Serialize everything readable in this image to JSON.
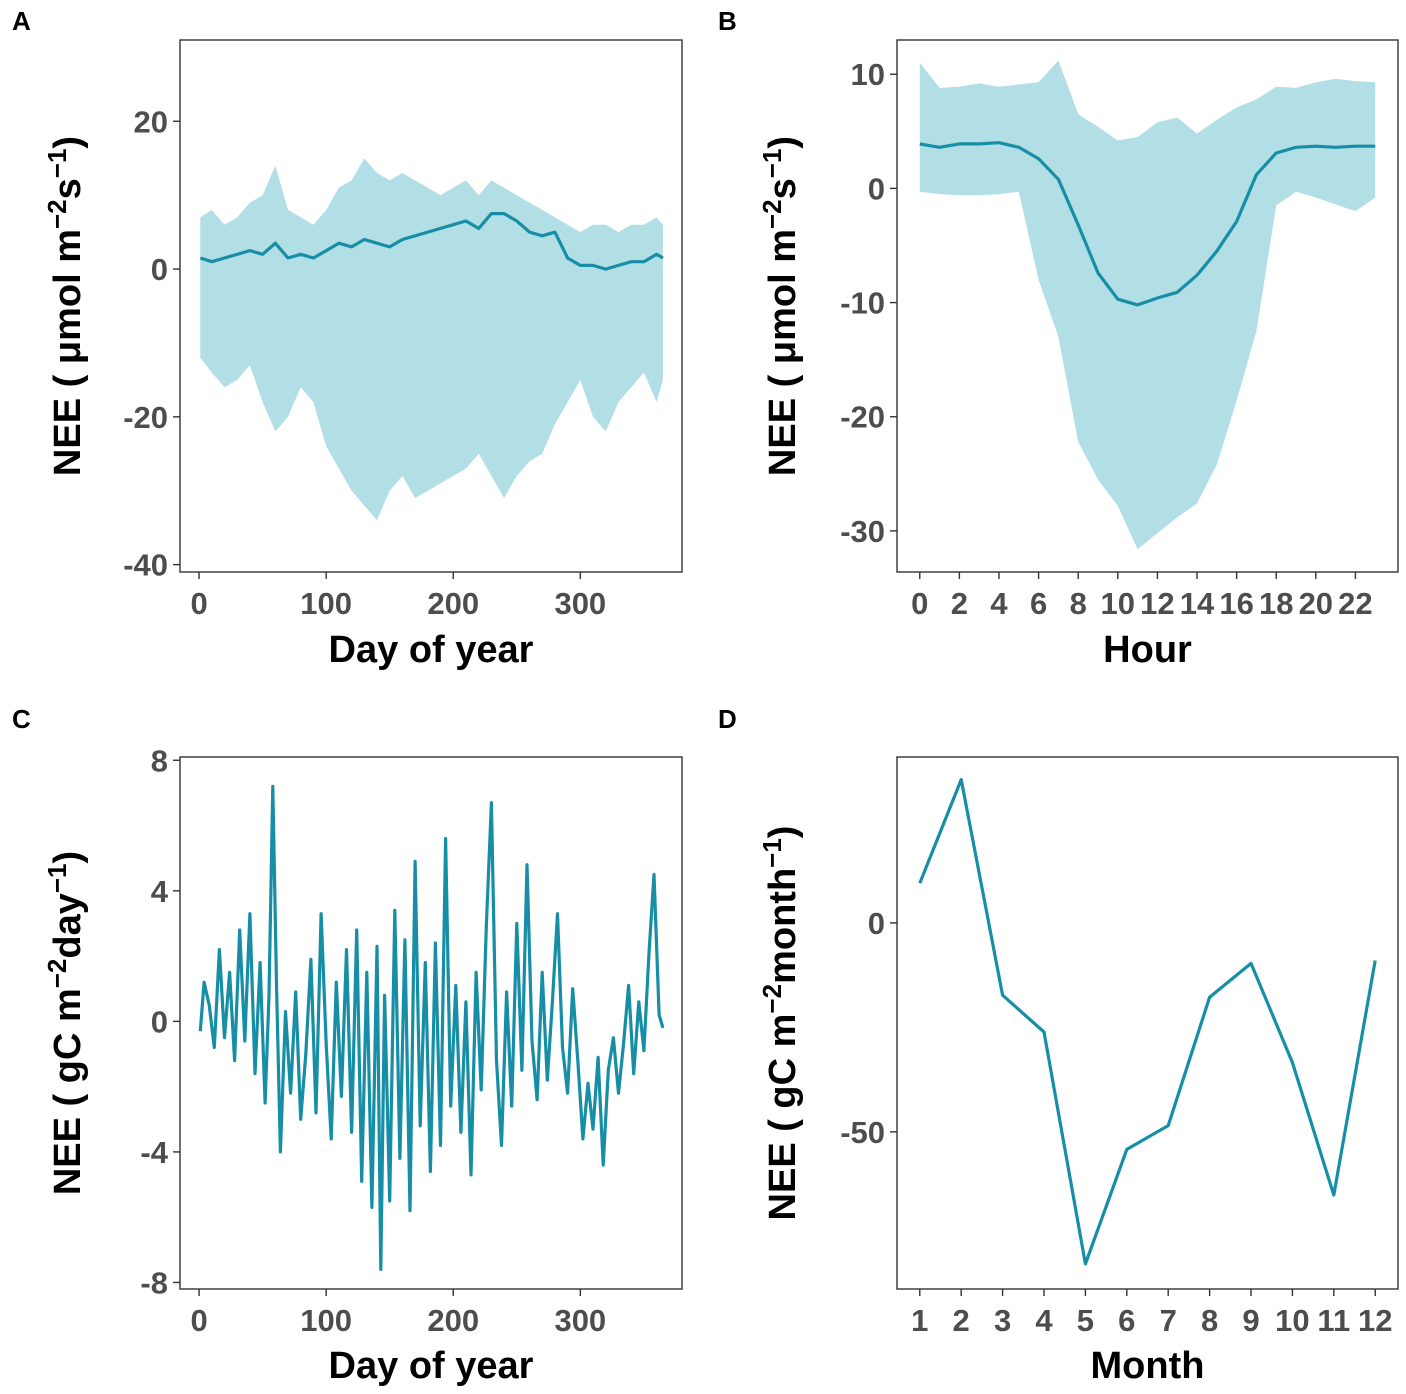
{
  "colors": {
    "line": "#168ea6",
    "band": "#b2dee6",
    "axis": "#333333",
    "tick_text": "#4d4d4d"
  },
  "chart_data": [
    {
      "id": "A",
      "panel_label": "A",
      "type": "line",
      "description": "Daily mean NEE with min-max band",
      "xlabel": "Day of year",
      "ylabel": {
        "main": "NEE ( μmol m",
        "sup1": "−2",
        "mid": "s",
        "sup2": "−1",
        "end": ")"
      },
      "xlim": [
        -15,
        380
      ],
      "ylim": [
        -41,
        31
      ],
      "xticks": [
        0,
        100,
        200,
        300
      ],
      "xtick_labels": [
        "0",
        "100",
        "200",
        "300"
      ],
      "yticks": [
        -40,
        -20,
        0,
        20
      ],
      "ytick_labels": [
        "-40",
        "-20",
        "0",
        "20"
      ],
      "x": [
        1,
        10,
        20,
        30,
        40,
        50,
        60,
        70,
        80,
        90,
        100,
        110,
        120,
        130,
        140,
        150,
        160,
        170,
        180,
        190,
        200,
        210,
        220,
        230,
        240,
        250,
        260,
        270,
        280,
        290,
        300,
        310,
        320,
        330,
        340,
        350,
        360,
        365
      ],
      "mean": [
        1.5,
        1.0,
        1.5,
        2.0,
        2.5,
        2.0,
        3.5,
        1.5,
        2.0,
        1.5,
        2.5,
        3.5,
        3.0,
        4.0,
        3.5,
        3.0,
        4.0,
        4.5,
        5.0,
        5.5,
        6.0,
        6.5,
        5.5,
        7.5,
        7.5,
        6.5,
        5.0,
        4.5,
        5.0,
        1.5,
        0.5,
        0.5,
        0.0,
        0.5,
        1.0,
        1.0,
        2.0,
        1.5
      ],
      "band_upper": [
        7,
        8,
        6,
        7,
        9,
        10,
        14,
        8,
        7,
        6,
        8,
        11,
        12,
        15,
        13,
        12,
        13,
        12,
        11,
        10,
        11,
        12,
        10,
        12,
        11,
        10,
        9,
        8,
        7,
        6,
        5,
        6,
        6,
        5,
        6,
        6,
        7,
        6
      ],
      "band_lower": [
        -12,
        -14,
        -16,
        -15,
        -13,
        -18,
        -22,
        -20,
        -16,
        -18,
        -24,
        -27,
        -30,
        -32,
        -34,
        -30,
        -28,
        -31,
        -30,
        -29,
        -28,
        -27,
        -25,
        -28,
        -31,
        -28,
        -26,
        -25,
        -21,
        -18,
        -15,
        -20,
        -22,
        -18,
        -16,
        -14,
        -18,
        -15
      ]
    },
    {
      "id": "B",
      "panel_label": "B",
      "type": "line",
      "description": "Diurnal mean NEE with min-max band",
      "xlabel": "Hour",
      "ylabel": {
        "main": "NEE ( μmol m",
        "sup1": "−2",
        "mid": "s",
        "sup2": "−1",
        "end": ")"
      },
      "xlim": [
        -1.15,
        24.15
      ],
      "ylim": [
        -33.6,
        13.0
      ],
      "xticks": [
        0,
        2,
        4,
        6,
        8,
        10,
        12,
        14,
        16,
        18,
        20,
        22
      ],
      "xtick_labels": [
        "0",
        "2",
        "4",
        "6",
        "8",
        "10",
        "12",
        "14",
        "16",
        "18",
        "20",
        "22"
      ],
      "yticks": [
        -30,
        -20,
        -10,
        0,
        10
      ],
      "ytick_labels": [
        "-30",
        "-20",
        "-10",
        "0",
        "10"
      ],
      "x": [
        0,
        1,
        2,
        3,
        4,
        5,
        6,
        7,
        8,
        9,
        10,
        11,
        12,
        13,
        14,
        15,
        16,
        17,
        18,
        19,
        20,
        21,
        22,
        23
      ],
      "mean": [
        3.9,
        3.6,
        3.9,
        3.9,
        4.0,
        3.6,
        2.6,
        0.8,
        -3.2,
        -7.4,
        -9.7,
        -10.2,
        -9.6,
        -9.1,
        -7.6,
        -5.5,
        -2.9,
        1.2,
        3.1,
        3.6,
        3.7,
        3.6,
        3.7,
        3.7
      ],
      "band_upper": [
        11.0,
        8.8,
        8.9,
        9.2,
        8.9,
        9.1,
        9.3,
        11.2,
        6.5,
        5.4,
        4.2,
        4.5,
        5.8,
        6.2,
        4.8,
        6.0,
        7.1,
        7.8,
        8.9,
        8.8,
        9.3,
        9.6,
        9.4,
        9.3
      ],
      "band_lower": [
        -0.3,
        -0.5,
        -0.6,
        -0.6,
        -0.5,
        -0.3,
        -8.0,
        -13.0,
        -22.2,
        -25.5,
        -27.8,
        -31.6,
        -30.2,
        -28.8,
        -27.6,
        -24.2,
        -18.6,
        -12.5,
        -1.5,
        -0.3,
        -0.8,
        -1.4,
        -2.0,
        -0.8
      ]
    },
    {
      "id": "C",
      "panel_label": "C",
      "type": "line",
      "description": "Daily cumulative NEE",
      "xlabel": "Day of year",
      "ylabel": {
        "main": "NEE ( gC m",
        "sup1": "−2",
        "mid": "day",
        "sup2": "−1",
        "end": ")"
      },
      "xlim": [
        -15,
        380
      ],
      "ylim": [
        -8.2,
        8.1
      ],
      "xticks": [
        0,
        100,
        200,
        300
      ],
      "xtick_labels": [
        "0",
        "100",
        "200",
        "300"
      ],
      "yticks": [
        -8,
        -4,
        0,
        4,
        8
      ],
      "ytick_labels": [
        "-8",
        "-4",
        "0",
        "4",
        "8"
      ],
      "x": [
        1,
        4,
        8,
        12,
        16,
        20,
        24,
        28,
        32,
        36,
        40,
        44,
        48,
        52,
        55,
        58,
        61,
        64,
        68,
        72,
        76,
        80,
        84,
        88,
        92,
        96,
        100,
        104,
        108,
        112,
        116,
        120,
        124,
        128,
        132,
        136,
        140,
        143,
        146,
        150,
        154,
        158,
        162,
        166,
        170,
        174,
        178,
        182,
        186,
        190,
        194,
        198,
        202,
        206,
        210,
        214,
        218,
        222,
        226,
        230,
        234,
        238,
        242,
        246,
        250,
        254,
        258,
        262,
        266,
        270,
        274,
        278,
        282,
        286,
        290,
        294,
        298,
        302,
        306,
        310,
        314,
        318,
        322,
        326,
        330,
        334,
        338,
        342,
        346,
        350,
        354,
        358,
        362,
        365
      ],
      "values": [
        -0.3,
        1.2,
        0.5,
        -0.8,
        2.2,
        -0.5,
        1.5,
        -1.2,
        2.8,
        -0.6,
        3.3,
        -1.6,
        1.8,
        -2.5,
        0.8,
        7.2,
        1.0,
        -4.0,
        0.3,
        -2.2,
        0.9,
        -3.0,
        -1.0,
        1.9,
        -2.8,
        3.3,
        -0.7,
        -3.6,
        1.2,
        -2.3,
        2.2,
        -3.4,
        2.8,
        -4.9,
        1.5,
        -5.7,
        2.3,
        -7.6,
        0.8,
        -5.5,
        3.4,
        -4.2,
        2.5,
        -5.8,
        4.9,
        -3.2,
        1.8,
        -4.6,
        2.4,
        -3.8,
        5.6,
        -2.6,
        1.1,
        -3.4,
        0.6,
        -4.7,
        1.5,
        -2.1,
        2.9,
        6.7,
        -1.2,
        -3.8,
        0.9,
        -2.6,
        3.0,
        -1.5,
        4.8,
        -0.6,
        -2.4,
        1.5,
        -1.8,
        0.6,
        3.3,
        -0.8,
        -2.2,
        1.0,
        -1.2,
        -3.6,
        -1.9,
        -3.3,
        -1.1,
        -4.4,
        -1.5,
        -0.5,
        -2.2,
        -0.7,
        1.1,
        -1.6,
        0.6,
        -0.9,
        2.1,
        4.5,
        0.2,
        -0.2
      ]
    },
    {
      "id": "D",
      "panel_label": "D",
      "type": "line",
      "description": "Monthly cumulative NEE",
      "xlabel": "Month",
      "ylabel": {
        "main": "NEE ( gC m",
        "sup1": "−2",
        "mid": "month",
        "sup2": "−1",
        "end": ")"
      },
      "xlim": [
        0.45,
        12.55
      ],
      "ylim": [
        -87.6,
        39.7
      ],
      "xticks": [
        1,
        2,
        3,
        4,
        5,
        6,
        7,
        8,
        9,
        10,
        11,
        12
      ],
      "xtick_labels": [
        "1",
        "2",
        "3",
        "4",
        "5",
        "6",
        "7",
        "8",
        "9",
        "10",
        "11",
        "12"
      ],
      "yticks": [
        -50,
        0
      ],
      "ytick_labels": [
        "-50",
        "0"
      ],
      "x": [
        1,
        2,
        3,
        4,
        5,
        6,
        7,
        8,
        9,
        10,
        11,
        12
      ],
      "values": [
        9.5,
        34.3,
        -17.3,
        -26.1,
        -81.6,
        -54.2,
        -48.5,
        -17.8,
        -9.7,
        -33.4,
        -65.1,
        -9.0
      ]
    }
  ]
}
